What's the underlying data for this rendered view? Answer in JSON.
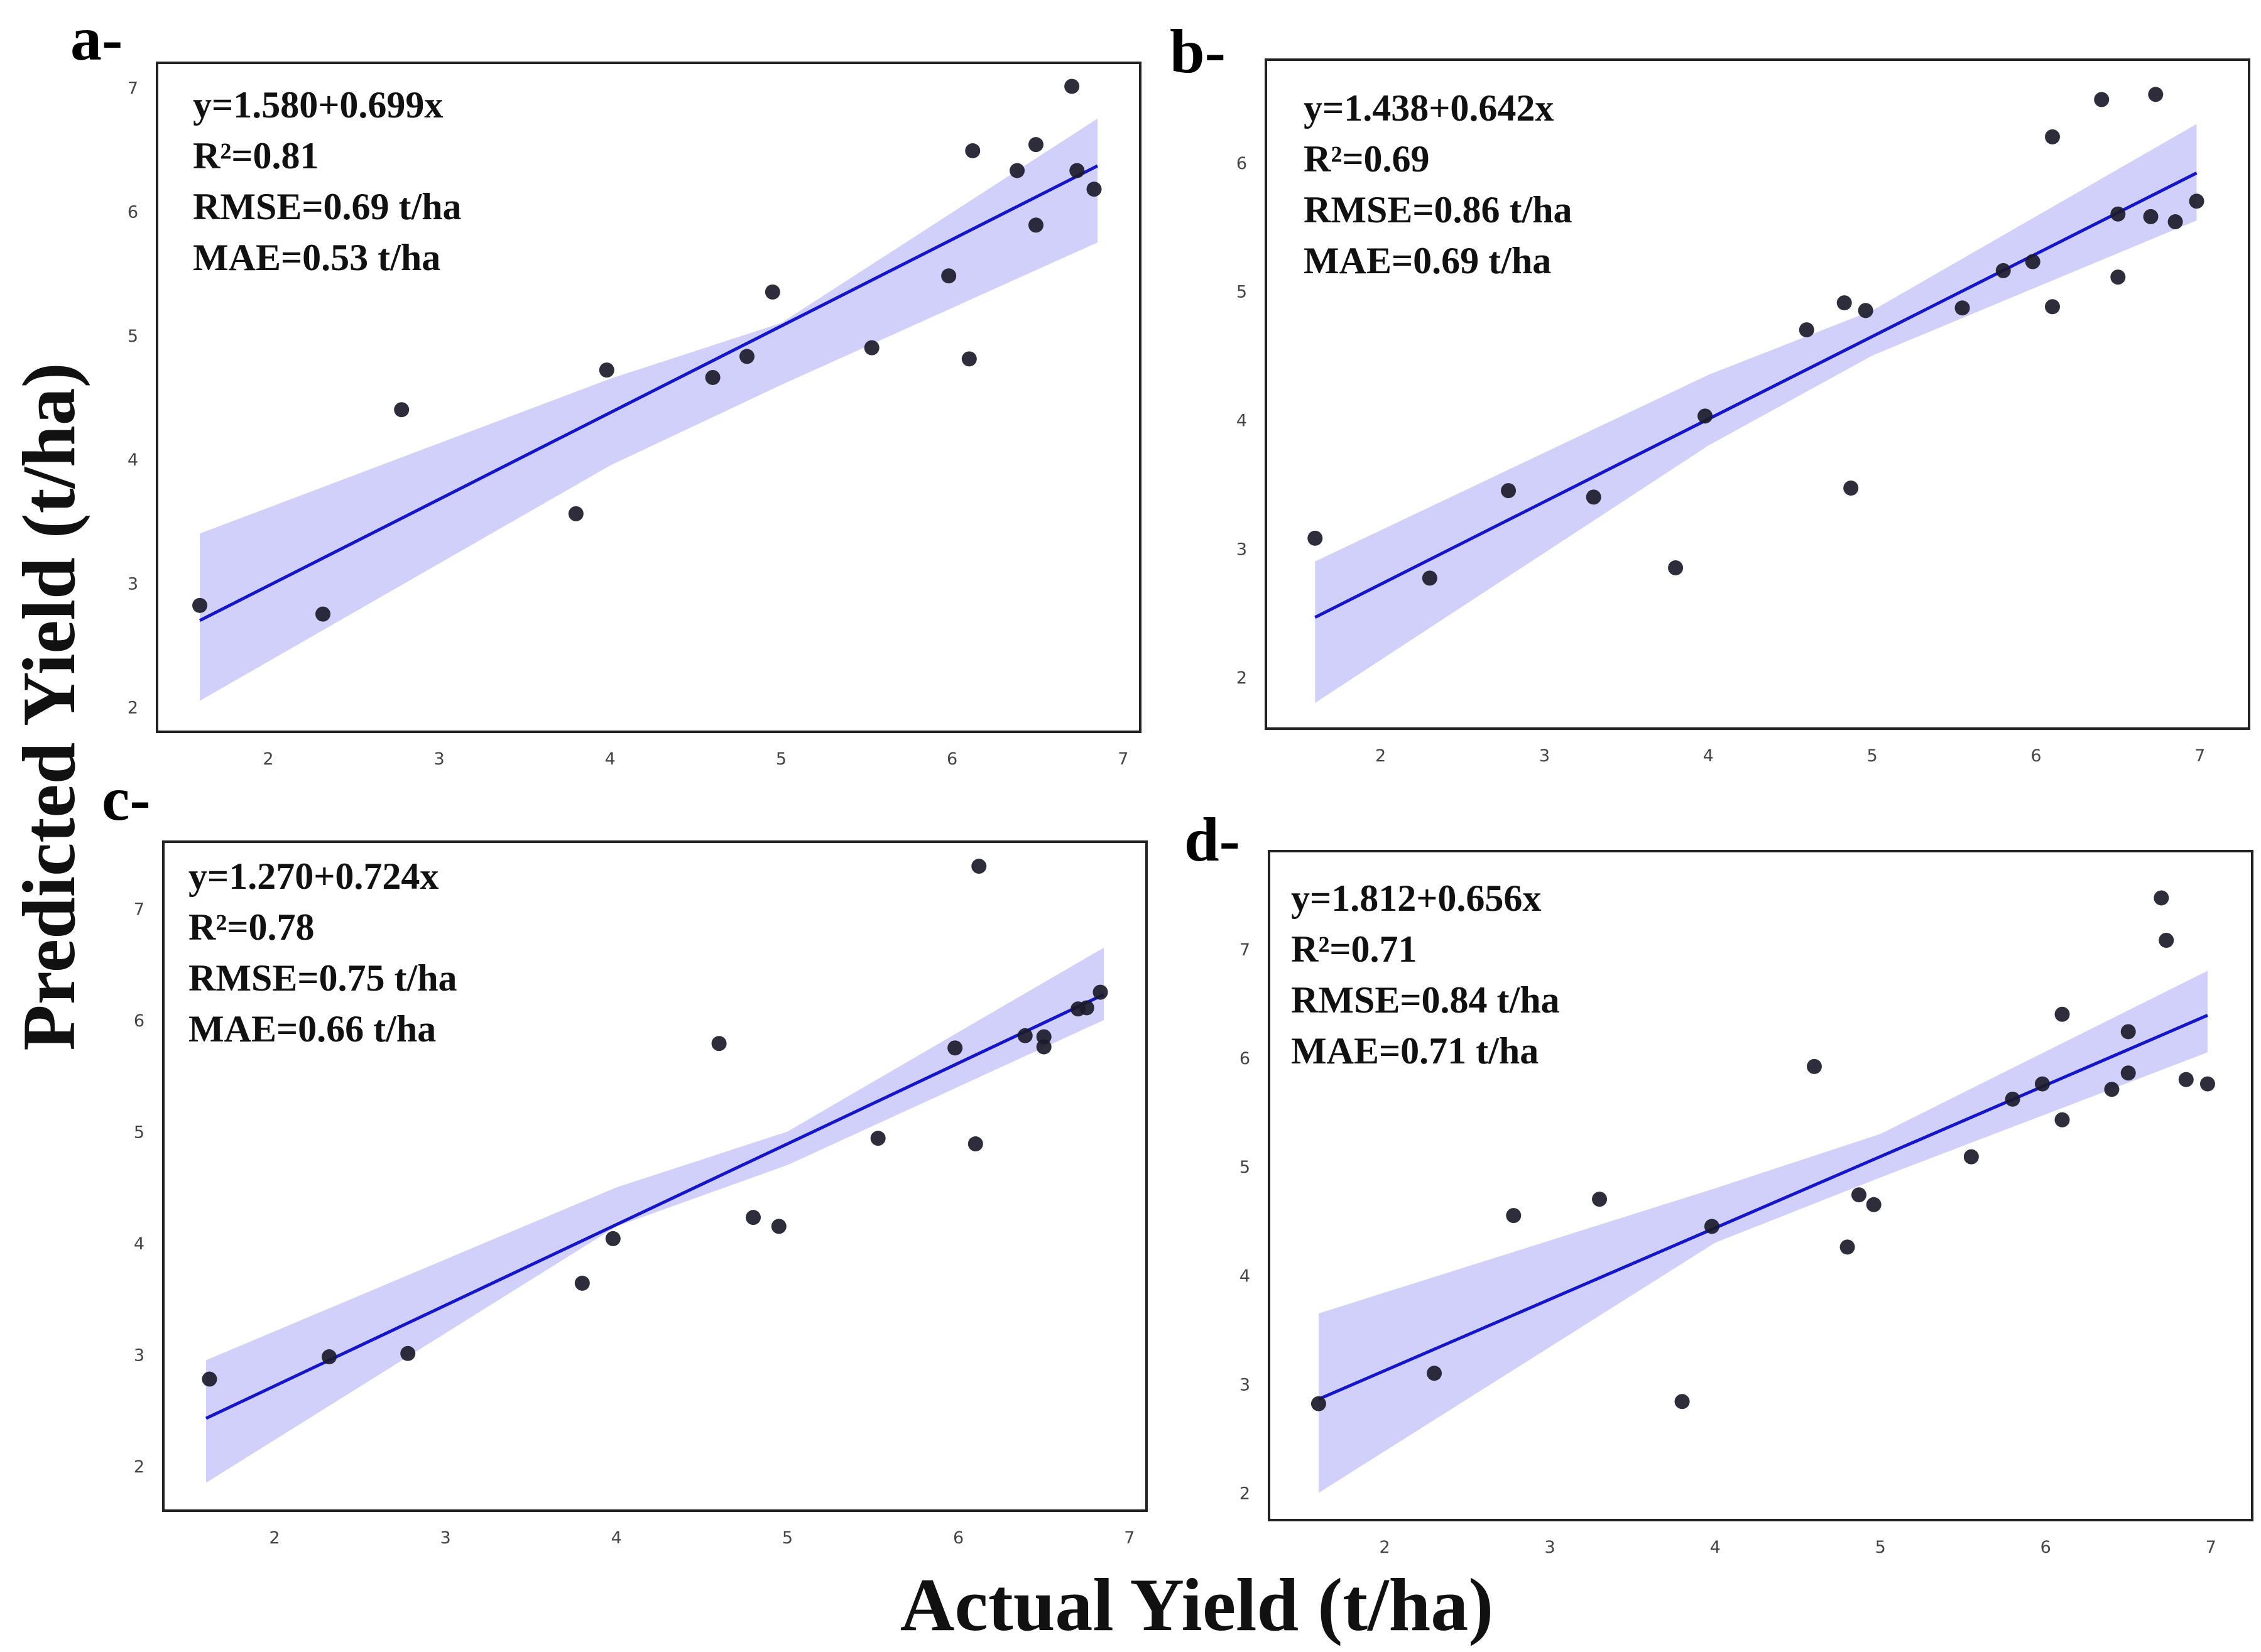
{
  "figure": {
    "xlabel": "Actual Yield (t/ha)",
    "ylabel": "Predicted Yield (t/ha)"
  },
  "colors": {
    "fit_line": "#1515c9",
    "band": "#c8c8fa",
    "points": "#1b1b2b",
    "frame": "#222222"
  },
  "chart_data": [
    {
      "type": "scatter",
      "panel": "a-",
      "title": "",
      "xlabel": "Actual Yield (t/ha)",
      "ylabel": "Predicted Yield (t/ha)",
      "equation": "y=1.580+0.699x",
      "r2": "R²=0.81",
      "rmse": "RMSE=0.69 t/ha",
      "mae": "MAE=0.53 t/ha",
      "xlim": [
        1.35,
        7.1
      ],
      "ylim": [
        1.8,
        7.2
      ],
      "xticks": [
        2,
        3,
        4,
        5,
        6,
        7
      ],
      "yticks": [
        2,
        3,
        4,
        5,
        6,
        7
      ],
      "fit": {
        "intercept": 1.58,
        "slope": 0.699,
        "x_range": [
          1.6,
          6.85
        ]
      },
      "band": {
        "x": [
          1.6,
          4.0,
          5.0,
          6.85
        ],
        "lower": [
          2.05,
          3.95,
          4.6,
          5.75
        ],
        "upper": [
          3.4,
          4.65,
          5.1,
          6.75
        ]
      },
      "points": [
        {
          "x": 1.6,
          "y": 2.82
        },
        {
          "x": 2.32,
          "y": 2.75
        },
        {
          "x": 2.78,
          "y": 4.4
        },
        {
          "x": 3.8,
          "y": 3.56
        },
        {
          "x": 3.98,
          "y": 4.72
        },
        {
          "x": 4.6,
          "y": 4.66
        },
        {
          "x": 4.8,
          "y": 4.83
        },
        {
          "x": 4.95,
          "y": 5.35
        },
        {
          "x": 5.53,
          "y": 4.9
        },
        {
          "x": 5.98,
          "y": 5.48
        },
        {
          "x": 6.1,
          "y": 4.81
        },
        {
          "x": 6.12,
          "y": 6.49
        },
        {
          "x": 6.38,
          "y": 6.33
        },
        {
          "x": 6.49,
          "y": 6.54
        },
        {
          "x": 6.49,
          "y": 5.89
        },
        {
          "x": 6.7,
          "y": 7.01
        },
        {
          "x": 6.73,
          "y": 6.33
        },
        {
          "x": 6.83,
          "y": 6.18
        }
      ]
    },
    {
      "type": "scatter",
      "panel": "b-",
      "title": "",
      "xlabel": "Actual Yield (t/ha)",
      "ylabel": "Predicted Yield (t/ha)",
      "equation": "y=1.438+0.642x",
      "r2": "R²=0.69",
      "rmse": "RMSE=0.86 t/ha",
      "mae": "MAE=0.69 t/ha",
      "xlim": [
        1.3,
        7.3
      ],
      "ylim": [
        1.6,
        6.8
      ],
      "xticks": [
        2,
        3,
        4,
        5,
        6,
        7
      ],
      "yticks": [
        2,
        3,
        4,
        5,
        6
      ],
      "fit": {
        "intercept": 1.438,
        "slope": 0.642,
        "x_range": [
          1.6,
          6.98
        ]
      },
      "band": {
        "x": [
          1.6,
          4.0,
          5.0,
          6.98
        ],
        "lower": [
          1.8,
          3.8,
          4.5,
          5.55
        ],
        "upper": [
          2.9,
          4.35,
          4.85,
          6.3
        ]
      },
      "points": [
        {
          "x": 1.6,
          "y": 3.08
        },
        {
          "x": 2.3,
          "y": 2.77
        },
        {
          "x": 2.78,
          "y": 3.45
        },
        {
          "x": 3.3,
          "y": 3.4
        },
        {
          "x": 3.8,
          "y": 2.85
        },
        {
          "x": 3.98,
          "y": 4.03
        },
        {
          "x": 4.6,
          "y": 4.7
        },
        {
          "x": 4.83,
          "y": 4.91
        },
        {
          "x": 4.87,
          "y": 3.47
        },
        {
          "x": 4.96,
          "y": 4.85
        },
        {
          "x": 5.55,
          "y": 4.87
        },
        {
          "x": 5.8,
          "y": 5.16
        },
        {
          "x": 5.98,
          "y": 5.23
        },
        {
          "x": 6.1,
          "y": 4.88
        },
        {
          "x": 6.1,
          "y": 6.2
        },
        {
          "x": 6.4,
          "y": 6.49
        },
        {
          "x": 6.5,
          "y": 5.11
        },
        {
          "x": 6.5,
          "y": 5.6
        },
        {
          "x": 6.7,
          "y": 5.58
        },
        {
          "x": 6.73,
          "y": 6.53
        },
        {
          "x": 6.85,
          "y": 5.54
        },
        {
          "x": 6.98,
          "y": 5.7
        }
      ]
    },
    {
      "type": "scatter",
      "panel": "c-",
      "title": "",
      "xlabel": "Actual Yield (t/ha)",
      "ylabel": "Predicted Yield (t/ha)",
      "equation": "y=1.270+0.724x",
      "r2": "R²=0.78",
      "rmse": "RMSE=0.75 t/ha",
      "mae": "MAE=0.66 t/ha",
      "xlim": [
        1.35,
        7.1
      ],
      "ylim": [
        1.6,
        7.6
      ],
      "xticks": [
        2,
        3,
        4,
        5,
        6,
        7
      ],
      "yticks": [
        2,
        3,
        4,
        5,
        6,
        7
      ],
      "fit": {
        "intercept": 1.27,
        "slope": 0.724,
        "x_range": [
          1.6,
          6.85
        ]
      },
      "band": {
        "x": [
          1.6,
          4.0,
          5.0,
          6.85
        ],
        "lower": [
          1.85,
          4.15,
          4.7,
          6.0
        ],
        "upper": [
          2.95,
          4.5,
          5.0,
          6.65
        ]
      },
      "points": [
        {
          "x": 1.62,
          "y": 2.78
        },
        {
          "x": 2.32,
          "y": 2.98
        },
        {
          "x": 2.78,
          "y": 3.01
        },
        {
          "x": 3.8,
          "y": 3.64
        },
        {
          "x": 3.98,
          "y": 4.04
        },
        {
          "x": 4.6,
          "y": 5.79
        },
        {
          "x": 4.8,
          "y": 4.23
        },
        {
          "x": 4.95,
          "y": 4.15
        },
        {
          "x": 5.53,
          "y": 4.94
        },
        {
          "x": 5.98,
          "y": 5.75
        },
        {
          "x": 6.1,
          "y": 4.89
        },
        {
          "x": 6.12,
          "y": 7.38
        },
        {
          "x": 6.39,
          "y": 5.86
        },
        {
          "x": 6.5,
          "y": 5.85
        },
        {
          "x": 6.5,
          "y": 5.76
        },
        {
          "x": 6.7,
          "y": 6.1
        },
        {
          "x": 6.75,
          "y": 6.11
        },
        {
          "x": 6.83,
          "y": 6.25
        }
      ]
    },
    {
      "type": "scatter",
      "panel": "d-",
      "title": "",
      "xlabel": "Actual Yield (t/ha)",
      "ylabel": "Predicted Yield (t/ha)",
      "equation": "y=1.812+0.656x",
      "r2": "R²=0.71",
      "rmse": "RMSE=0.84 t/ha",
      "mae": "MAE=0.71 t/ha",
      "xlim": [
        1.3,
        7.25
      ],
      "ylim": [
        1.75,
        7.9
      ],
      "xticks": [
        2,
        3,
        4,
        5,
        6,
        7
      ],
      "yticks": [
        2,
        3,
        4,
        5,
        6,
        7
      ],
      "fit": {
        "intercept": 1.812,
        "slope": 0.656,
        "x_range": [
          1.6,
          6.98
        ]
      },
      "band": {
        "x": [
          1.6,
          4.0,
          5.0,
          6.98
        ],
        "lower": [
          2.0,
          4.3,
          4.9,
          6.05
        ],
        "upper": [
          3.65,
          4.8,
          5.3,
          6.8
        ]
      },
      "points": [
        {
          "x": 1.6,
          "y": 2.82
        },
        {
          "x": 2.3,
          "y": 3.1
        },
        {
          "x": 2.78,
          "y": 4.55
        },
        {
          "x": 3.3,
          "y": 4.7
        },
        {
          "x": 3.8,
          "y": 2.84
        },
        {
          "x": 3.98,
          "y": 4.45
        },
        {
          "x": 4.6,
          "y": 5.92
        },
        {
          "x": 4.8,
          "y": 4.26
        },
        {
          "x": 4.87,
          "y": 4.74
        },
        {
          "x": 4.96,
          "y": 4.65
        },
        {
          "x": 5.55,
          "y": 5.09
        },
        {
          "x": 5.8,
          "y": 5.62
        },
        {
          "x": 5.98,
          "y": 5.76
        },
        {
          "x": 6.1,
          "y": 5.43
        },
        {
          "x": 6.1,
          "y": 6.4
        },
        {
          "x": 6.4,
          "y": 5.71
        },
        {
          "x": 6.5,
          "y": 5.86
        },
        {
          "x": 6.5,
          "y": 6.24
        },
        {
          "x": 6.7,
          "y": 7.47
        },
        {
          "x": 6.73,
          "y": 7.08
        },
        {
          "x": 6.85,
          "y": 5.8
        },
        {
          "x": 6.98,
          "y": 5.76
        }
      ]
    }
  ]
}
